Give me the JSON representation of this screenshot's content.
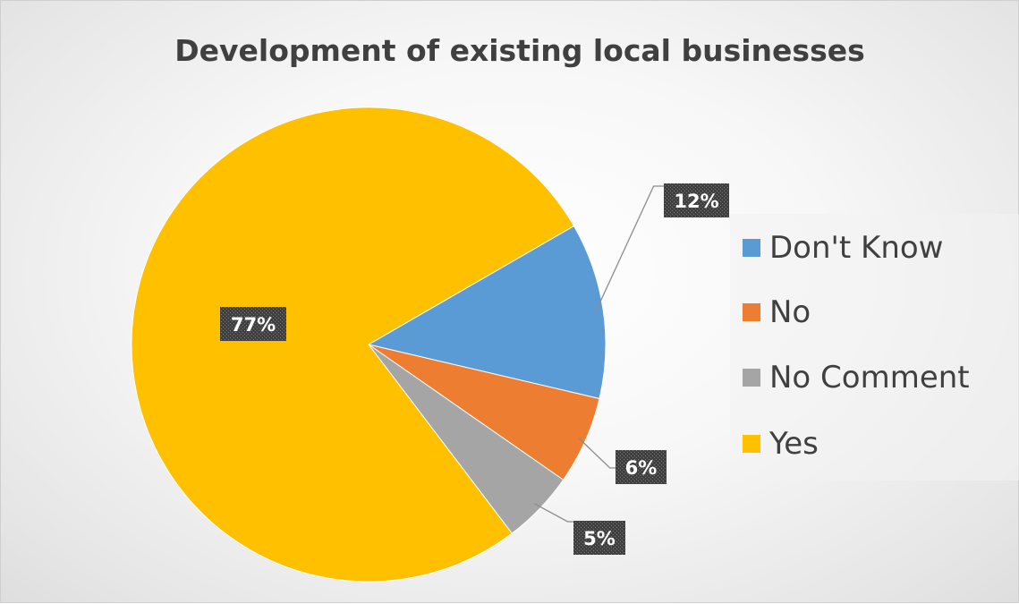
{
  "chart_data": {
    "type": "pie",
    "title": "Development of existing local businesses",
    "slices": [
      {
        "label": "Don't Know",
        "value": 12,
        "data_label": "12%",
        "color": "#5B9BD5"
      },
      {
        "label": "No",
        "value": 6,
        "data_label": "6%",
        "color": "#ED7D31"
      },
      {
        "label": "No Comment",
        "value": 5,
        "data_label": "5%",
        "color": "#A5A5A5"
      },
      {
        "label": "Yes",
        "value": 77,
        "data_label": "77%",
        "color": "#FFC000"
      }
    ],
    "legend_position": "right",
    "data_label_background": "#404040"
  }
}
